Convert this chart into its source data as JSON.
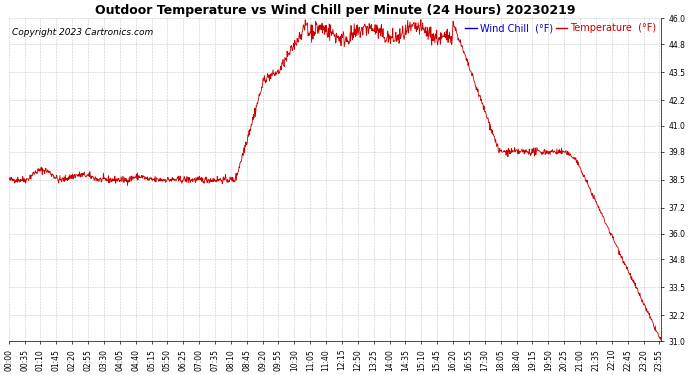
{
  "title": "Outdoor Temperature vs Wind Chill per Minute (24 Hours) 20230219",
  "copyright_text": "Copyright 2023 Cartronics.com",
  "legend_wind_chill": "Wind Chill  (°F)",
  "legend_temperature": "Temperature  (°F)",
  "line_color": "#cc0000",
  "background_color": "#ffffff",
  "grid_color": "#bbbbbb",
  "title_color": "#000000",
  "copyright_color": "#000000",
  "legend_wind_color": "#0000cc",
  "legend_temp_color": "#cc0000",
  "ylim": [
    31.0,
    46.0
  ],
  "yticks": [
    31.0,
    32.2,
    33.5,
    34.8,
    36.0,
    37.2,
    38.5,
    39.8,
    41.0,
    42.2,
    43.5,
    44.8,
    46.0
  ],
  "num_minutes": 1440,
  "x_tick_interval": 35,
  "title_fontsize": 9,
  "axis_fontsize": 5.5,
  "legend_fontsize": 7,
  "copyright_fontsize": 6.5
}
